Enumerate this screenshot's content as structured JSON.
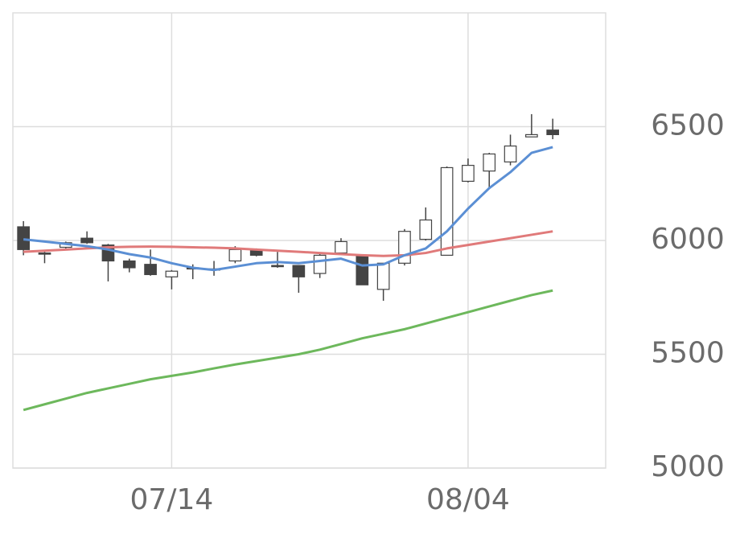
{
  "chart_data": {
    "type": "candlestick",
    "categories": [
      null,
      null,
      null,
      null,
      null,
      null,
      null,
      "07/14",
      null,
      null,
      null,
      null,
      null,
      null,
      null,
      null,
      null,
      null,
      null,
      null,
      null,
      "08/04",
      null,
      null,
      null,
      null
    ],
    "open": [
      6060,
      5945,
      5970,
      6010,
      5980,
      5910,
      5895,
      5840,
      5880,
      5875,
      5910,
      5955,
      5890,
      5890,
      5855,
      5945,
      5935,
      5785,
      5900,
      6005,
      5935,
      6260,
      6305,
      6345,
      6455,
      6485
    ],
    "high": [
      6085,
      5950,
      5995,
      6040,
      5985,
      5920,
      5960,
      5870,
      5895,
      5910,
      5975,
      5965,
      5950,
      5890,
      5940,
      6010,
      5935,
      5900,
      6050,
      6145,
      6325,
      6360,
      6385,
      6465,
      6555,
      6535
    ],
    "low": [
      5935,
      5900,
      5965,
      5985,
      5820,
      5860,
      5845,
      5785,
      5830,
      5845,
      5900,
      5930,
      5880,
      5770,
      5835,
      5940,
      5805,
      5735,
      5890,
      6000,
      5935,
      6255,
      6225,
      6330,
      6455,
      6445
    ],
    "close": [
      5960,
      5940,
      5990,
      5990,
      5910,
      5880,
      5850,
      5865,
      5875,
      5875,
      5960,
      5935,
      5885,
      5840,
      5935,
      5995,
      5805,
      5900,
      6040,
      6090,
      6320,
      6330,
      6380,
      6415,
      6465,
      6465
    ],
    "up_color": "#ffffff",
    "down_color": "#444444",
    "edge_color": "#444444",
    "series": [
      {
        "color": "#e07a7a",
        "values": [
          5950,
          5955,
          5960,
          5965,
          5970,
          5972,
          5973,
          5972,
          5970,
          5968,
          5965,
          5960,
          5955,
          5950,
          5945,
          5940,
          5935,
          5932,
          5935,
          5945,
          5965,
          5980,
          5995,
          6010,
          6025,
          6040
        ]
      },
      {
        "color": "#6db85c",
        "values": [
          5255,
          5280,
          5305,
          5330,
          5350,
          5370,
          5390,
          5405,
          5420,
          5438,
          5455,
          5470,
          5485,
          5500,
          5520,
          5545,
          5570,
          5590,
          5610,
          5635,
          5660,
          5685,
          5710,
          5735,
          5760,
          5780
        ]
      },
      {
        "color": "#5b8fd4",
        "values": [
          6005,
          5995,
          5985,
          5975,
          5960,
          5940,
          5925,
          5900,
          5880,
          5870,
          5885,
          5900,
          5905,
          5900,
          5910,
          5920,
          5890,
          5895,
          5935,
          5965,
          6040,
          6140,
          6230,
          6300,
          6385,
          6410
        ]
      }
    ],
    "ylim": [
      5000,
      7000
    ],
    "yticks": [
      5000,
      5500,
      6000,
      6500
    ],
    "grid": true
  }
}
